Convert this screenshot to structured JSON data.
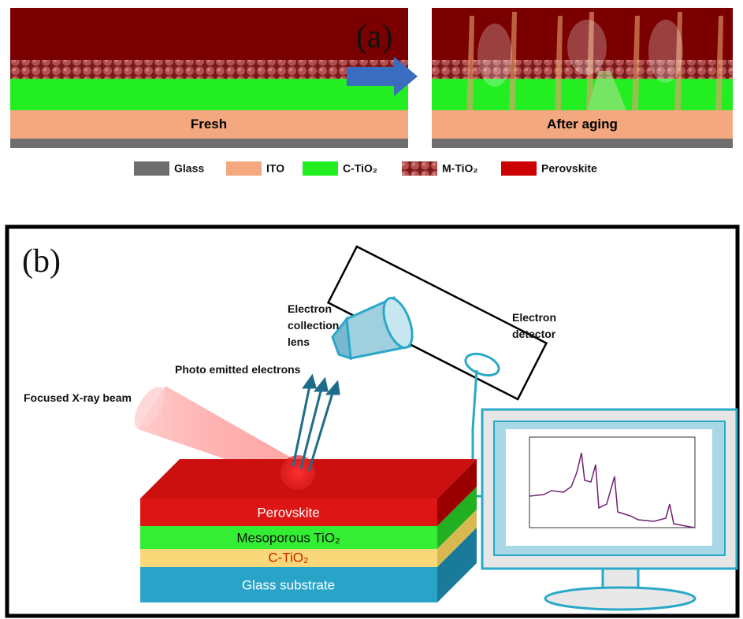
{
  "panel_a": {
    "label": "(a)",
    "fresh_label": "Fresh",
    "aged_label": "After aging",
    "legend": [
      "Glass",
      "ITO",
      "C-TiO₂",
      "M-TiO₂",
      "Perovskite"
    ]
  },
  "panel_b": {
    "label": "(b)",
    "beam_label": "Focused X-ray beam",
    "electrons_label": "Photo emitted electrons",
    "lens_label": [
      "Electron",
      "collection",
      "lens"
    ],
    "detector_label": [
      "Electron",
      "detector"
    ],
    "layers": [
      "Perovskite",
      "Mesoporous TiO₂",
      "C-TiO₂",
      "Glass substrate"
    ]
  }
}
